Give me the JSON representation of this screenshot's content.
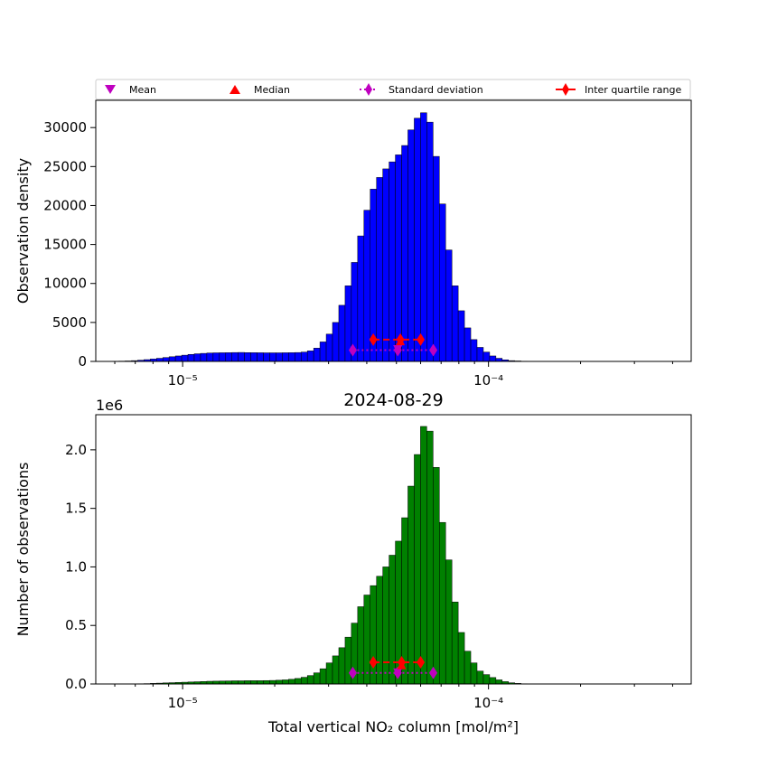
{
  "legend": {
    "items": [
      {
        "label": "Mean",
        "marker": "triangle-down",
        "color": "#bf00bf"
      },
      {
        "label": "Median",
        "marker": "triangle-up",
        "color": "#ff0000"
      },
      {
        "label": "Standard deviation",
        "marker": "diamond-dotted-line",
        "color": "#bf00bf"
      },
      {
        "label": "Inter quartile range",
        "marker": "diamond-solid-line",
        "color": "#ff0000"
      }
    ]
  },
  "chart_data": [
    {
      "type": "bar",
      "scale_x": "log",
      "xlim": [
        5.2e-06,
        0.00046
      ],
      "ylim": [
        0,
        33500
      ],
      "ylabel": "Observation density",
      "xticks": [
        {
          "value": 1e-05,
          "label": "10⁻⁵"
        },
        {
          "value": 0.0001,
          "label": "10⁻⁴"
        }
      ],
      "yticks": [
        0,
        5000,
        10000,
        15000,
        20000,
        25000,
        30000
      ],
      "bar_color": "#0000ff",
      "bin_start": 5.9e-06,
      "bin_ratio": 1.04845,
      "values": [
        30,
        40,
        60,
        100,
        160,
        230,
        310,
        400,
        500,
        600,
        700,
        800,
        900,
        980,
        1030,
        1080,
        1100,
        1110,
        1120,
        1140,
        1150,
        1130,
        1120,
        1110,
        1100,
        1100,
        1100,
        1110,
        1120,
        1140,
        1200,
        1350,
        1700,
        2500,
        3500,
        5000,
        7200,
        9700,
        12700,
        16100,
        19400,
        22100,
        23600,
        24700,
        25600,
        26500,
        27700,
        29700,
        31200,
        31900,
        30700,
        26300,
        20200,
        14300,
        9700,
        6500,
        4300,
        2800,
        1800,
        1200,
        700,
        400,
        200,
        100,
        60,
        30,
        15,
        8,
        4,
        2,
        1,
        0,
        0,
        0,
        0,
        0,
        0,
        0,
        0,
        0,
        0,
        0,
        0,
        0,
        0,
        0,
        0,
        0,
        0,
        0,
        0,
        0,
        0,
        0
      ],
      "stats": {
        "mean": {
          "x": 5.05e-05,
          "y": 1500
        },
        "median": {
          "x": 5.15e-05,
          "y": 2650
        },
        "std_range": {
          "x": [
            3.6e-05,
            6.6e-05
          ],
          "y": 1450,
          "center": 5.05e-05
        },
        "iqr_range": {
          "x": [
            4.2e-05,
            6e-05
          ],
          "y": 2800,
          "center": 5.15e-05
        }
      }
    },
    {
      "type": "bar",
      "scale_x": "log",
      "title": "2024-08-29",
      "xlim": [
        5.2e-06,
        0.00046
      ],
      "ylim": [
        0,
        2300000
      ],
      "y_offset_label": "1e6",
      "ylabel": "Number of observations",
      "xlabel": "Total vertical NO₂ column [mol/m²]",
      "xticks": [
        {
          "value": 1e-05,
          "label": "10⁻⁵"
        },
        {
          "value": 0.0001,
          "label": "10⁻⁴"
        }
      ],
      "yticks": [
        {
          "value": 0,
          "label": "0.0"
        },
        {
          "value": 500000,
          "label": "0.5"
        },
        {
          "value": 1000000,
          "label": "1.0"
        },
        {
          "value": 1500000,
          "label": "1.5"
        },
        {
          "value": 2000000,
          "label": "2.0"
        }
      ],
      "bar_color": "#008000",
      "bin_start": 5.9e-06,
      "bin_ratio": 1.04845,
      "values": [
        500,
        700,
        1000,
        1500,
        2000,
        3000,
        5000,
        7000,
        9000,
        11000,
        13000,
        15000,
        17000,
        19000,
        21000,
        23000,
        24000,
        25000,
        26000,
        27000,
        27000,
        28000,
        28000,
        28000,
        29000,
        30000,
        32000,
        35000,
        40000,
        47000,
        57000,
        72000,
        95000,
        130000,
        180000,
        240000,
        310000,
        400000,
        520000,
        660000,
        760000,
        840000,
        920000,
        1000000,
        1100000,
        1220000,
        1420000,
        1690000,
        1960000,
        2200000,
        2160000,
        1850000,
        1380000,
        1060000,
        700000,
        440000,
        280000,
        180000,
        110000,
        80000,
        55000,
        35000,
        20000,
        10000,
        5000,
        2000,
        1000,
        500,
        200,
        100,
        0,
        0,
        0,
        0,
        0,
        0,
        0,
        0,
        0,
        0,
        0,
        0,
        0,
        0,
        0,
        0,
        0,
        0,
        0,
        0,
        0,
        0,
        0,
        0
      ],
      "stats": {
        "mean": {
          "x": 5.05e-05,
          "y": 95000
        },
        "median": {
          "x": 5.2e-05,
          "y": 165000
        },
        "std_range": {
          "x": [
            3.6e-05,
            6.6e-05
          ],
          "y": 95000,
          "center": 5.05e-05
        },
        "iqr_range": {
          "x": [
            4.2e-05,
            6e-05
          ],
          "y": 185000,
          "center": 5.2e-05
        }
      }
    }
  ]
}
